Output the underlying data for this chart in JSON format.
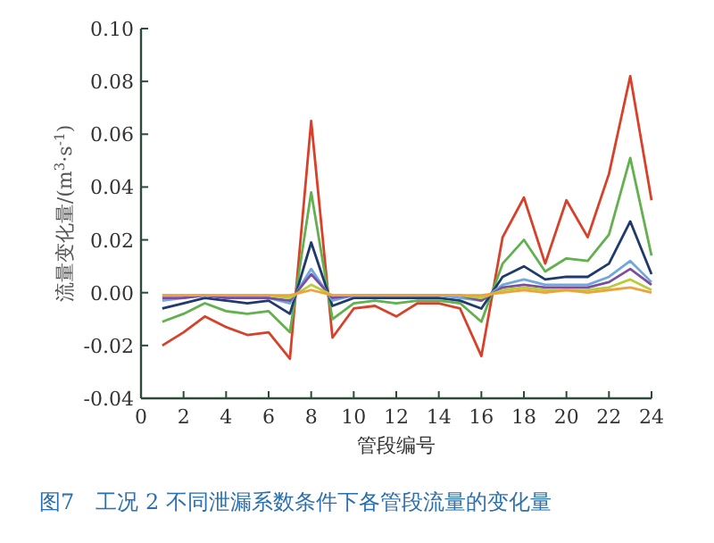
{
  "chart_data": {
    "type": "line",
    "xlabel": "管段编号",
    "ylabel": "流量变化量/(m$^{3}$·s$^{-1}$)",
    "annotations": [
      "图7　工况 2 不同泄漏系数条件下各管段流量的变化量"
    ],
    "x": [
      1,
      2,
      3,
      4,
      5,
      6,
      7,
      8,
      9,
      10,
      11,
      12,
      13,
      14,
      15,
      16,
      17,
      18,
      19,
      20,
      21,
      22,
      23,
      24
    ],
    "xlim": [
      0,
      24
    ],
    "xticks": [
      0,
      2,
      4,
      6,
      8,
      10,
      12,
      14,
      16,
      18,
      20,
      22,
      24
    ],
    "ylim": [
      -0.04,
      0.1
    ],
    "yticks": [
      -0.04,
      -0.02,
      {
        "value": 0,
        "label": "0.00"
      },
      0.02,
      0.04,
      0.06,
      0.08,
      {
        "value": 0.1,
        "label": "0.10"
      }
    ],
    "grid": false,
    "marker": "none",
    "line_style": "solid",
    "series": [
      {
        "color": "#f0a23a",
        "values": [
          -0.001,
          -0.001,
          -0.001,
          -0.001,
          -0.001,
          -0.001,
          -0.001,
          0.001,
          -0.001,
          -0.001,
          -0.001,
          -0.001,
          -0.001,
          -0.001,
          -0.001,
          -0.001,
          0.0,
          0.001,
          0.0,
          0.001,
          0.0,
          0.001,
          0.002,
          0.0
        ]
      },
      {
        "color": "#b8cc3c",
        "values": [
          -0.001,
          -0.001,
          -0.001,
          -0.001,
          -0.001,
          -0.001,
          -0.002,
          0.003,
          -0.001,
          -0.001,
          -0.001,
          -0.001,
          -0.001,
          -0.001,
          -0.001,
          -0.002,
          0.001,
          0.002,
          0.001,
          0.001,
          0.001,
          0.002,
          0.005,
          0.001
        ]
      },
      {
        "color": "#7b4ea3",
        "values": [
          -0.002,
          -0.002,
          -0.001,
          -0.002,
          -0.002,
          -0.002,
          -0.003,
          0.007,
          -0.002,
          -0.001,
          -0.001,
          -0.001,
          -0.001,
          -0.001,
          -0.001,
          -0.003,
          0.002,
          0.003,
          0.002,
          0.002,
          0.002,
          0.004,
          0.009,
          0.003
        ]
      },
      {
        "color": "#6fa8dc",
        "values": [
          -0.003,
          -0.002,
          -0.001,
          -0.002,
          -0.002,
          -0.002,
          -0.004,
          0.009,
          -0.003,
          -0.001,
          -0.001,
          -0.001,
          -0.001,
          -0.001,
          -0.002,
          -0.003,
          0.003,
          0.005,
          0.003,
          0.003,
          0.003,
          0.006,
          0.012,
          0.004
        ]
      },
      {
        "color": "#1f3a6e",
        "values": [
          -0.006,
          -0.004,
          -0.002,
          -0.003,
          -0.004,
          -0.003,
          -0.008,
          0.019,
          -0.005,
          -0.002,
          -0.002,
          -0.002,
          -0.002,
          -0.002,
          -0.003,
          -0.006,
          0.006,
          0.01,
          0.005,
          0.006,
          0.006,
          0.011,
          0.027,
          0.007
        ]
      },
      {
        "color": "#62b04e",
        "values": [
          -0.011,
          -0.008,
          -0.004,
          -0.007,
          -0.008,
          -0.007,
          -0.015,
          0.038,
          -0.01,
          -0.004,
          -0.003,
          -0.004,
          -0.003,
          -0.003,
          -0.004,
          -0.011,
          0.011,
          0.02,
          0.008,
          0.013,
          0.012,
          0.022,
          0.051,
          0.014
        ]
      },
      {
        "color": "#d9402a",
        "values": [
          -0.02,
          -0.015,
          -0.009,
          -0.013,
          -0.016,
          -0.015,
          -0.025,
          0.065,
          -0.017,
          -0.006,
          -0.005,
          -0.009,
          -0.004,
          -0.004,
          -0.006,
          -0.024,
          0.021,
          0.036,
          0.011,
          0.035,
          0.021,
          0.045,
          0.082,
          0.035
        ]
      }
    ]
  }
}
